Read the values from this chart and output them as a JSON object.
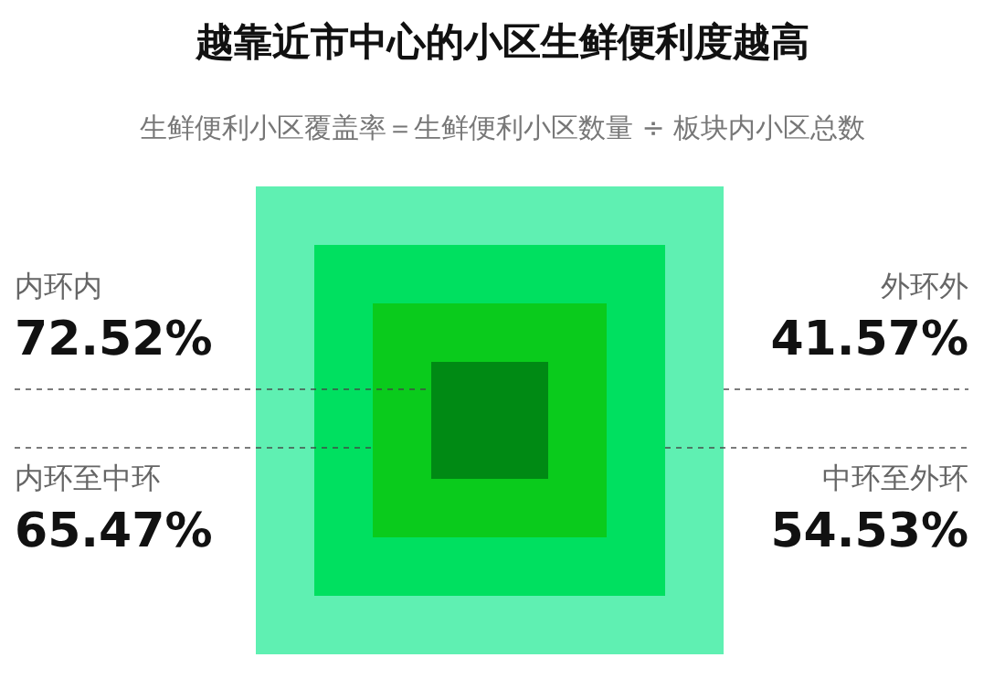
{
  "chart_data": {
    "type": "other",
    "title": "越靠近市中心的小区生鲜便利度越高",
    "subtitle": "生鲜便利小区覆盖率＝生鲜便利小区数量 ÷ 板块内小区总数",
    "categories": [
      "内环内",
      "内环至中环",
      "中环至外环",
      "外环外"
    ],
    "values": [
      72.52,
      65.47,
      54.53,
      41.57
    ],
    "value_labels": [
      "72.52%",
      "65.47%",
      "54.53%",
      "41.57%"
    ],
    "colors": [
      "#008a14",
      "#0acb1c",
      "#00e060",
      "#5ff0b2"
    ]
  }
}
